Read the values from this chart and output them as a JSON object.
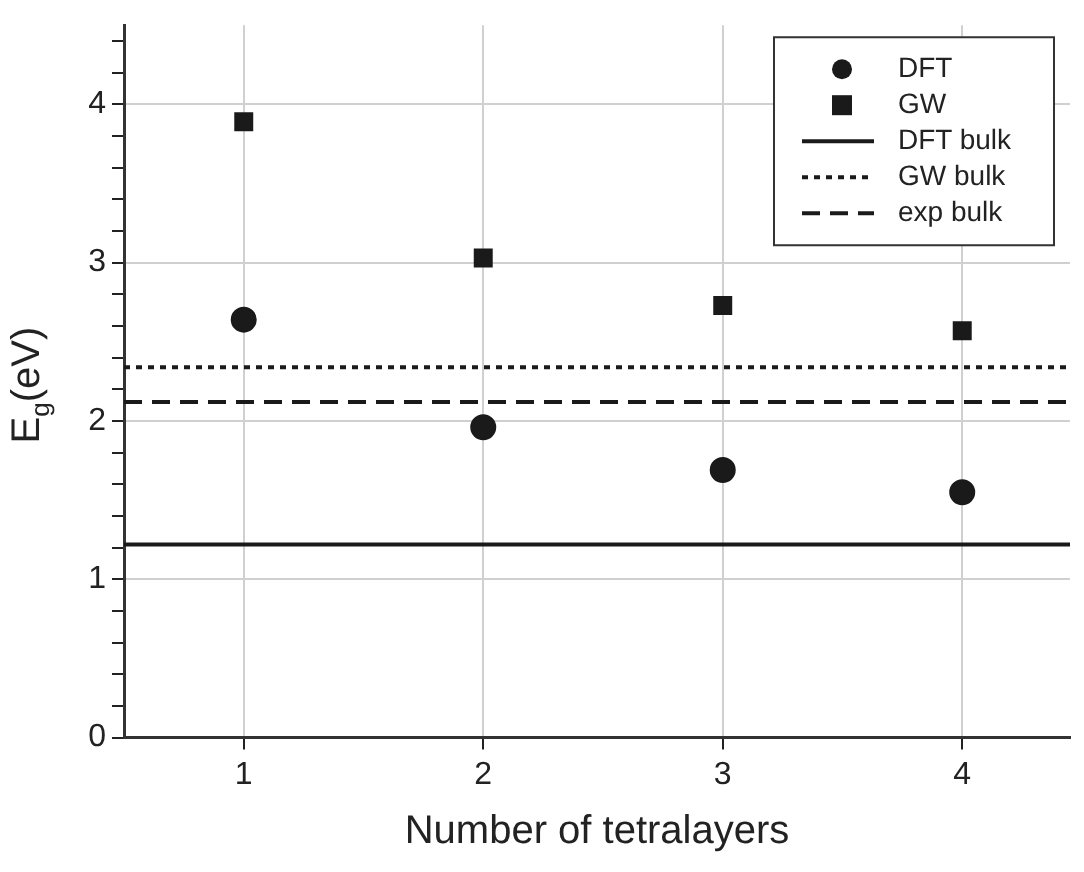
{
  "chart_data": {
    "type": "scatter",
    "xlabel": "Number of tetralayers",
    "ylabel": "E$_{g}$(eV)",
    "x": [
      1,
      2,
      3,
      4
    ],
    "series": [
      {
        "name": "DFT",
        "color": "#1a1a1a",
        "marker": "circle",
        "values": [
          2.64,
          1.96,
          1.69,
          1.55
        ]
      },
      {
        "name": "GW",
        "color": "#1a1a1a",
        "marker": "square",
        "values": [
          3.89,
          3.03,
          2.73,
          2.57
        ]
      }
    ],
    "ref_lines": [
      {
        "axis": "y",
        "value": 1.22,
        "label": "DFT bulk",
        "color": "#1a1a1a",
        "line_style": "solid"
      },
      {
        "axis": "y",
        "value": 2.34,
        "label": "GW bulk",
        "color": "#1a1a1a",
        "line_style": "dotted"
      },
      {
        "axis": "y",
        "value": 2.12,
        "label": "exp bulk",
        "color": "#1a1a1a",
        "line_style": "dashed"
      }
    ],
    "xlim": [
      0.5,
      4.45
    ],
    "xticks": [
      1,
      2,
      3,
      4
    ],
    "ylim": [
      0,
      4.5
    ],
    "yticks": [
      0,
      {
        "value": 0.2,
        "label": null
      },
      {
        "value": 0.4,
        "label": null
      },
      {
        "value": 0.6,
        "label": null
      },
      {
        "value": 0.8,
        "label": null
      },
      1,
      {
        "value": 1.2,
        "label": null
      },
      {
        "value": 1.4,
        "label": null
      },
      {
        "value": 1.6,
        "label": null
      },
      {
        "value": 1.8,
        "label": null
      },
      2,
      {
        "value": 2.2,
        "label": null
      },
      {
        "value": 2.4,
        "label": null
      },
      {
        "value": 2.6,
        "label": null
      },
      {
        "value": 2.8,
        "label": null
      },
      3,
      {
        "value": 3.2,
        "label": null
      },
      {
        "value": 3.4,
        "label": null
      },
      {
        "value": 3.6,
        "label": null
      },
      {
        "value": 3.8,
        "label": null
      },
      4,
      {
        "value": 4.2,
        "label": null
      },
      {
        "value": 4.4,
        "label": null
      }
    ],
    "grid": true,
    "legend": "top right"
  }
}
